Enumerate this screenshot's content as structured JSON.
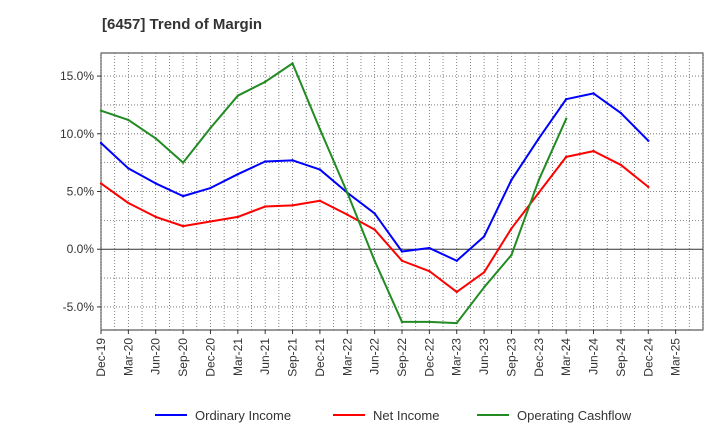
{
  "page_title": "[6457]  Trend of Margin",
  "chart_data": {
    "type": "line",
    "title": "[6457]  Trend of Margin",
    "xlabel": "",
    "ylabel": "",
    "categories": [
      "Dec-19",
      "Mar-20",
      "Jun-20",
      "Sep-20",
      "Dec-20",
      "Mar-21",
      "Jun-21",
      "Sep-21",
      "Dec-21",
      "Mar-22",
      "Jun-22",
      "Sep-22",
      "Dec-22",
      "Mar-23",
      "Jun-23",
      "Sep-23",
      "Dec-23",
      "Mar-24",
      "Jun-24",
      "Sep-24",
      "Dec-24",
      "Mar-25"
    ],
    "ylim": [
      -7.0,
      17.0
    ],
    "yticks": [
      -5.0,
      0.0,
      5.0,
      10.0,
      15.0
    ],
    "ytick_labels": [
      "-5.0%",
      "0.0%",
      "5.0%",
      "10.0%",
      "15.0%"
    ],
    "grid": true,
    "legend_position": "bottom",
    "series": [
      {
        "name": "Ordinary Income",
        "color": "#0000ff",
        "values": [
          9.2,
          7.0,
          5.7,
          4.6,
          5.3,
          6.5,
          7.6,
          7.7,
          6.9,
          4.9,
          3.1,
          -0.2,
          0.1,
          -1.0,
          1.1,
          6.0,
          9.6,
          13.0,
          13.5,
          11.8,
          9.4,
          null
        ]
      },
      {
        "name": "Net Income",
        "color": "#ff0000",
        "values": [
          5.7,
          4.0,
          2.8,
          2.0,
          2.4,
          2.8,
          3.7,
          3.8,
          4.2,
          3.0,
          1.7,
          -1.0,
          -1.9,
          -3.7,
          -2.0,
          1.8,
          4.9,
          8.0,
          8.5,
          7.3,
          5.4,
          null
        ]
      },
      {
        "name": "Operating Cashflow",
        "color": "#228b22",
        "values": [
          12.0,
          11.2,
          9.6,
          7.5,
          10.5,
          13.3,
          14.5,
          16.1,
          10.4,
          4.9,
          -1.0,
          -6.3,
          -6.3,
          -6.4,
          -3.3,
          -0.5,
          6.0,
          11.3,
          null,
          null,
          null,
          null
        ]
      }
    ]
  }
}
